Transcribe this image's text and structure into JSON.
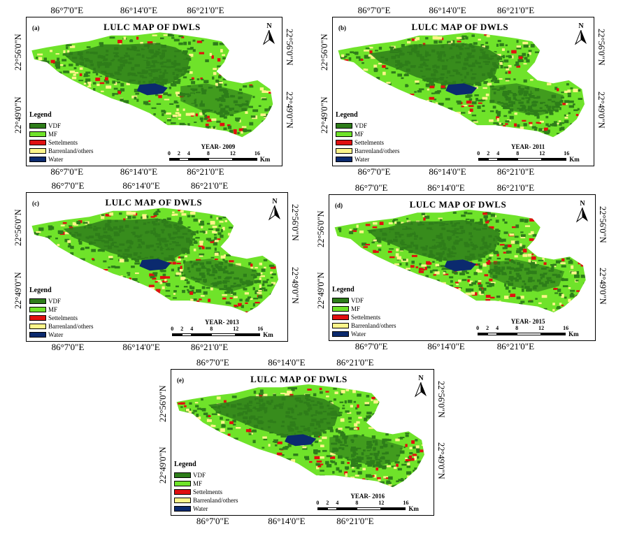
{
  "panels": [
    {
      "id": "a",
      "label": "(a)",
      "title": "LULC MAP OF DWLS",
      "year": "YEAR- 2009"
    },
    {
      "id": "b",
      "label": "(b)",
      "title": "LULC MAP OF DWLS",
      "year": "YEAR- 2011"
    },
    {
      "id": "c",
      "label": "(c)",
      "title": "LULC MAP OF DWLS",
      "year": "YEAR- 2013"
    },
    {
      "id": "d",
      "label": "(d)",
      "title": "LULC MAP OF DWLS",
      "year": "YEAR- 2015"
    },
    {
      "id": "e",
      "label": "(e)",
      "title": "LULC MAP OF DWLS",
      "year": "YEAR- 2016"
    }
  ],
  "longitudes": [
    "86°7'0\"E",
    "86°14'0\"E",
    "86°21'0\"E"
  ],
  "latitudes": [
    "22°56'0\"N",
    "22°49'0\"N"
  ],
  "north_label": "N",
  "legend": {
    "title": "Legend",
    "items": [
      {
        "label": "VDF",
        "color": "#2e7d1a"
      },
      {
        "label": "MF",
        "color": "#6fe32a"
      },
      {
        "label": "Settelments",
        "color": "#e01010"
      },
      {
        "label": "Barrenland/others",
        "color": "#fdf58a"
      },
      {
        "label": "Water",
        "color": "#0b2a6e"
      }
    ]
  },
  "scale": {
    "ticks": [
      "0",
      "2",
      "4",
      "8",
      "12",
      "16"
    ],
    "unit": "Km"
  }
}
